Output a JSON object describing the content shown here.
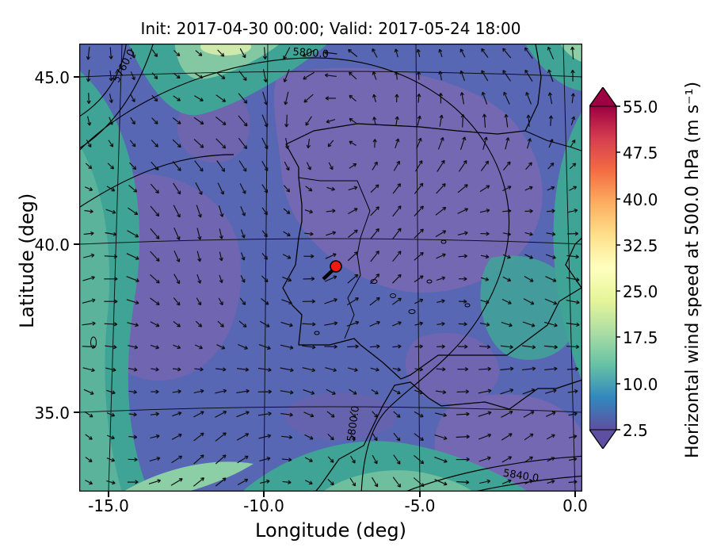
{
  "title": "Init: 2017-04-30 00:00; Valid: 2017-05-24 18:00",
  "axes": {
    "x": {
      "label": "Longitude (deg)",
      "ticks": [
        "-15.0",
        "-10.0",
        "-5.0",
        "0.0"
      ]
    },
    "y": {
      "label": "Latitude (deg)",
      "ticks": [
        "45.0",
        "40.0",
        "35.0"
      ]
    }
  },
  "colorbar": {
    "label": "Horizontal wind speed at 500.0 hPa (m s⁻¹)",
    "ticks": [
      "55.0",
      "47.5",
      "40.0",
      "32.5",
      "25.0",
      "17.5",
      "10.0",
      "2.5"
    ]
  },
  "contour_labels": {
    "a": "5760.0",
    "b": "5800.0",
    "c": "5800.0",
    "d": "5840.0"
  },
  "quiver": {
    "cols": 23,
    "rows": 20,
    "color": "#0d0d0d"
  },
  "colors": {
    "map_base": "#5767b3",
    "map_purple": "#7568b2",
    "map_teal": "#3fa496",
    "map_green": "#83c8a3",
    "map_pale": "#cfe9ac",
    "marker_red": "#f01a10",
    "colormap": [
      "#5e4fa2",
      "#3288bd",
      "#66c2a5",
      "#abdda4",
      "#e6f598",
      "#ffffbf",
      "#fee08b",
      "#fdae61",
      "#f46d43",
      "#d53e4f",
      "#9e0142"
    ]
  },
  "chart_data": {
    "type": "heatmap",
    "title": "Init: 2017-04-30 00:00; Valid: 2017-05-24 18:00",
    "xlabel": "Longitude (deg)",
    "ylabel": "Latitude (deg)",
    "xlim": [
      -16.1,
      0.5
    ],
    "ylim": [
      33.4,
      46.3
    ],
    "x_ticks": [
      -15.0,
      -10.0,
      -5.0,
      0.0
    ],
    "y_ticks": [
      35.0,
      40.0,
      45.0
    ],
    "colorbar": {
      "label": "Horizontal wind speed at 500.0 hPa (m s⁻¹)",
      "ticks": [
        2.5,
        10.0,
        17.5,
        25.0,
        32.5,
        40.0,
        47.5,
        55.0
      ],
      "range": [
        2.5,
        55.0
      ],
      "extend": "both",
      "colormap": "Spectral_r",
      "colormap_colors": [
        "#5e4fa2",
        "#3288bd",
        "#66c2a5",
        "#abdda4",
        "#e6f598",
        "#ffffbf",
        "#fee08b",
        "#fdae61",
        "#f46d43",
        "#d53e4f",
        "#9e0142"
      ]
    },
    "overlays": {
      "quiver": "horizontal wind vector arrows at 500.0 hPa on a regular grid",
      "contours": {
        "field": "geopotential height",
        "labels": [
          5760.0,
          5800.0,
          5800.0,
          5840.0
        ]
      },
      "marker": {
        "lon": -7.7,
        "lat": 39.4,
        "style": "red filled circle with black edge"
      }
    },
    "field_summary": "Wind speed mostly 2.5–17.5 m/s: blue-purple lows (~5 m/s) over Iberia, Bay of Biscay and SE corner; teal/green bands (~12–20 m/s) along the NW, top-left, right and bottom edges of the domain."
  }
}
